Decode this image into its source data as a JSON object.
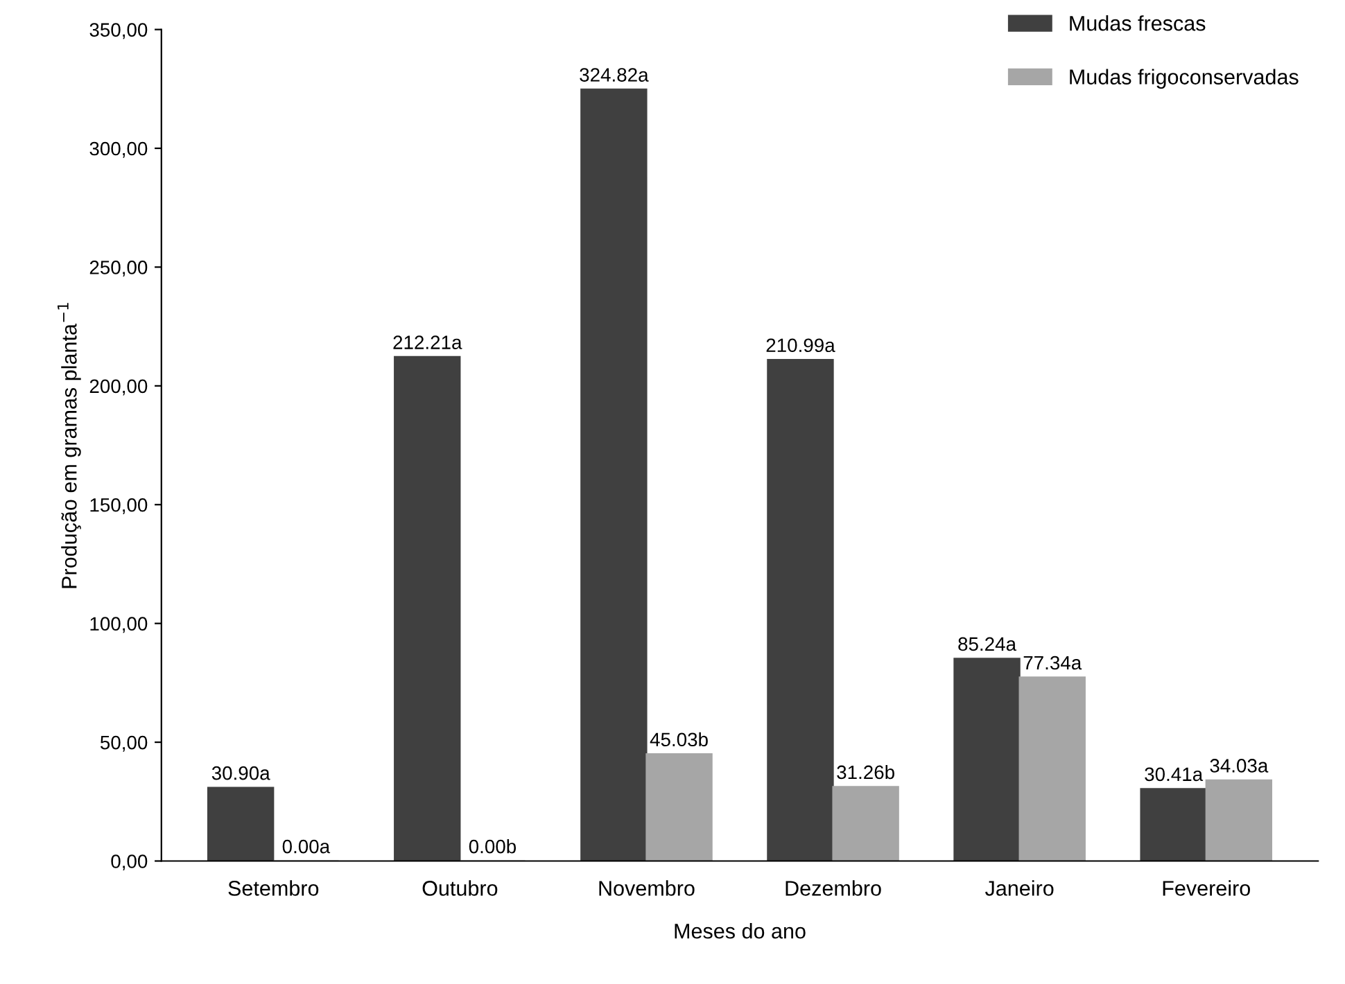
{
  "chart_data": {
    "type": "bar",
    "xlabel": "Meses do ano",
    "ylabel": "Produção em gramas planta$^{−1}$",
    "categories": [
      "Setembro",
      "Outubro",
      "Novembro",
      "Dezembro",
      "Janeiro",
      "Fevereiro"
    ],
    "series": [
      {
        "name": "Mudas frescas",
        "color": "#404040",
        "values": [
          30.9,
          212.21,
          324.82,
          210.99,
          85.24,
          30.41
        ],
        "value_labels": [
          "30.90a",
          "212.21a",
          "324.82a",
          "210.99a",
          "85.24a",
          "30.41a"
        ]
      },
      {
        "name": "Mudas frigoconservadas",
        "color": "#a6a6a6",
        "values": [
          0.0,
          0.0,
          45.03,
          31.26,
          77.34,
          34.03
        ],
        "value_labels": [
          "0.00a",
          "0.00b",
          "45.03b",
          "31.26b",
          "77.34a",
          "34.03a"
        ]
      }
    ],
    "ylim": [
      0,
      350
    ],
    "yticks": [
      {
        "value": 0,
        "label": "0,00"
      },
      {
        "value": 50,
        "label": "50,00"
      },
      {
        "value": 100,
        "label": "100,00"
      },
      {
        "value": 150,
        "label": "150,00"
      },
      {
        "value": 200,
        "label": "200,00"
      },
      {
        "value": 250,
        "label": "250,00"
      },
      {
        "value": 300,
        "label": "300,00"
      },
      {
        "value": 350,
        "label": "350,00"
      }
    ],
    "grid": false,
    "legend": "top right"
  }
}
